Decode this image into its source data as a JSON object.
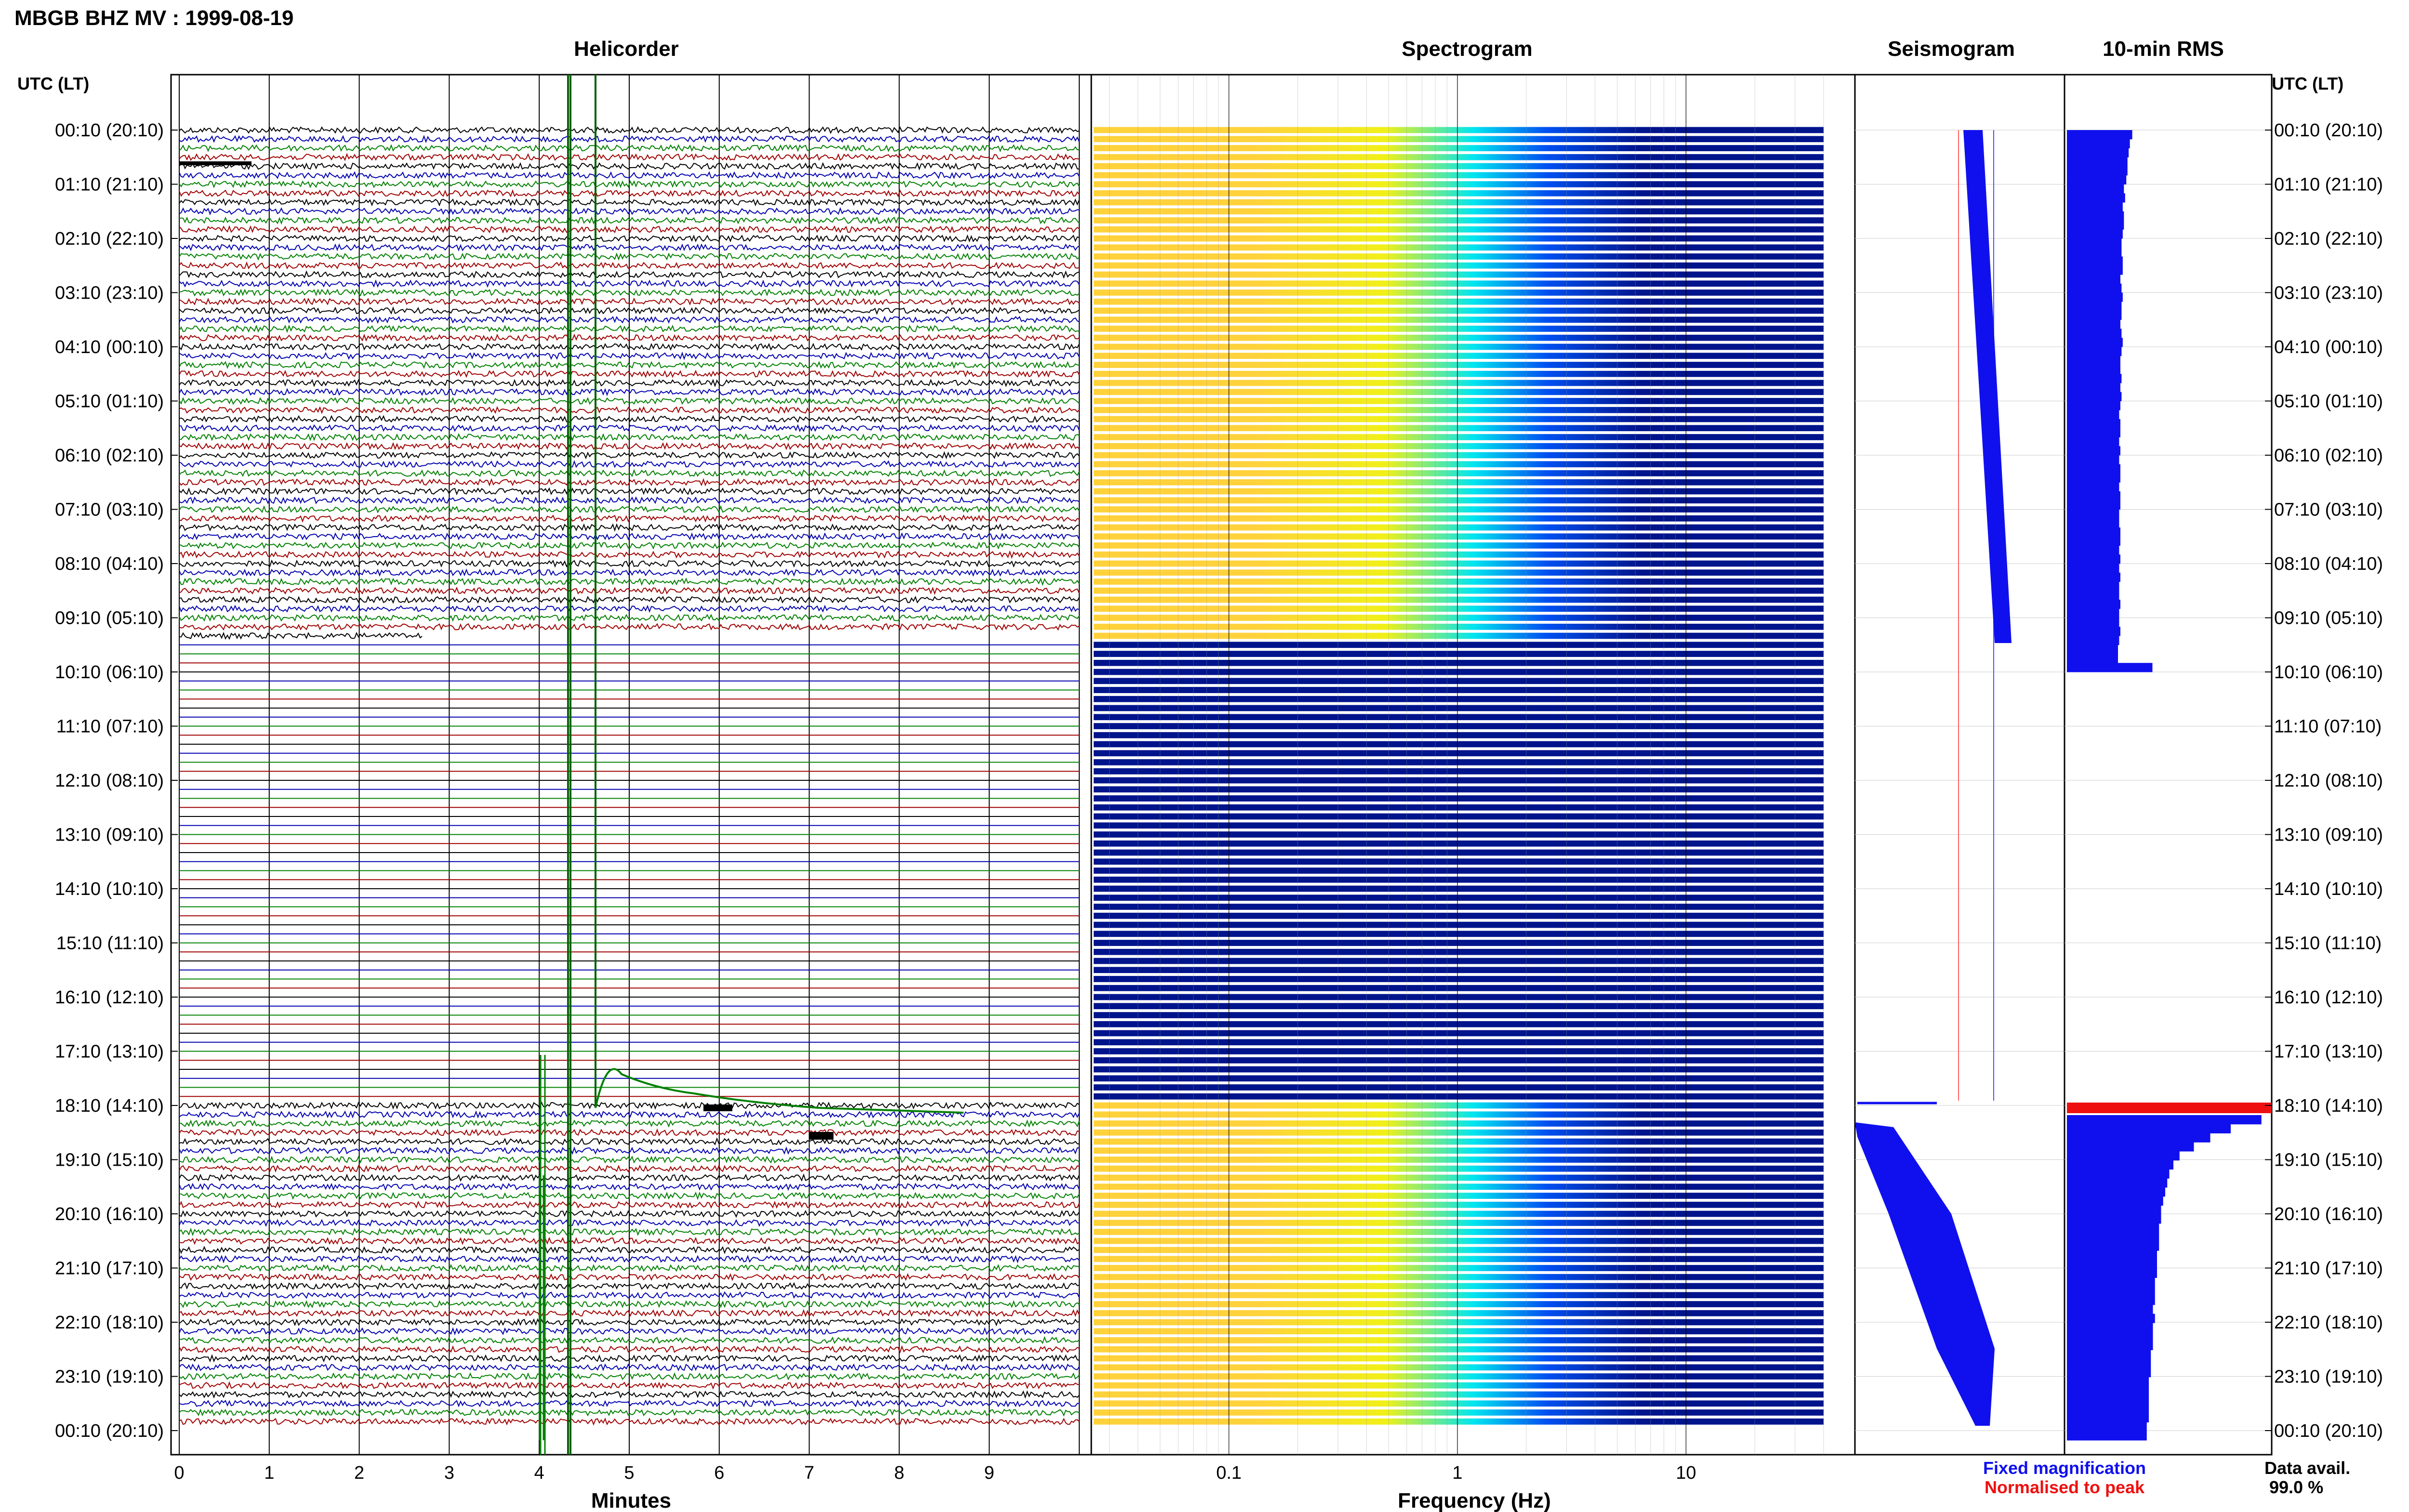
{
  "header": {
    "title": "MBGB BHZ MV : 1999-08-19"
  },
  "panels": {
    "helicorder": "Helicorder",
    "spectrogram": "Spectrogram",
    "seismogram": "Seismogram",
    "rms": "10-min RMS"
  },
  "axis": {
    "utc_label_left": "UTC (LT)",
    "utc_label_right": "UTC (LT)",
    "minutes_label": "Minutes",
    "frequency_label": "Frequency (Hz)"
  },
  "legend": {
    "fixed": "Fixed magnification",
    "normalised": "Normalised to peak",
    "fixed_color": "#1010ee",
    "normalised_color": "#ee1010"
  },
  "data_avail": {
    "label": "Data avail.",
    "value": "99.0 %"
  },
  "chart_data": {
    "type": "heatmap",
    "time_labels": [
      "00:10 (20:10)",
      "01:10 (21:10)",
      "02:10 (22:10)",
      "03:10 (23:10)",
      "04:10 (00:10)",
      "05:10 (01:10)",
      "06:10 (02:10)",
      "07:10 (03:10)",
      "08:10 (04:10)",
      "09:10 (05:10)",
      "10:10 (06:10)",
      "11:10 (07:10)",
      "12:10 (08:10)",
      "13:10 (09:10)",
      "14:10 (10:10)",
      "15:10 (11:10)",
      "16:10 (12:10)",
      "17:10 (13:10)",
      "18:10 (14:10)",
      "19:10 (15:10)",
      "20:10 (16:10)",
      "21:10 (17:10)",
      "22:10 (18:10)",
      "23:10 (19:10)",
      "00:10 (20:10)"
    ],
    "minute_ticks": [
      "0",
      "1",
      "2",
      "3",
      "4",
      "5",
      "6",
      "7",
      "8",
      "9"
    ],
    "frequency_ticks": [
      "0.1",
      "1",
      "10"
    ],
    "frequency_range_hz": [
      0.025,
      40
    ],
    "minutes_range": [
      0,
      10
    ],
    "trace_colors": [
      "#000000",
      "#0000b0",
      "#008000",
      "#a00000"
    ],
    "spectrogram_colors": [
      "#ffd23c",
      "#f0f018",
      "#00e6f0",
      "#0050f0",
      "#00148c"
    ],
    "rows_per_hour": 6,
    "data_gap_hours": [
      9.5,
      18.0
    ],
    "rms_values": [
      0.55,
      0.53,
      0.52,
      0.51,
      0.51,
      0.5,
      0.48,
      0.49,
      0.47,
      0.48,
      0.48,
      0.47,
      0.46,
      0.46,
      0.47,
      0.47,
      0.45,
      0.46,
      0.47,
      0.46,
      0.46,
      0.45,
      0.46,
      0.47,
      0.46,
      0.45,
      0.45,
      0.46,
      0.45,
      0.46,
      0.45,
      0.44,
      0.45,
      0.45,
      0.44,
      0.45,
      0.44,
      0.45,
      0.45,
      0.44,
      0.45,
      0.45,
      0.44,
      0.44,
      0.45,
      0.45,
      0.44,
      0.45,
      0.44,
      0.45,
      0.44,
      0.44,
      0.45,
      0.44,
      0.44,
      0.45,
      0.44,
      0.43,
      0.43,
      0.72
    ],
    "rms_values_after_gap": [
      0.95,
      0.8,
      0.7,
      0.62,
      0.55,
      0.52,
      0.5,
      0.49,
      0.48,
      0.47,
      0.46,
      0.46,
      0.45,
      0.45,
      0.45,
      0.44,
      0.44,
      0.44,
      0.43,
      0.43,
      0.43,
      0.42,
      0.43,
      0.42,
      0.42,
      0.42,
      0.41,
      0.41,
      0.41,
      0.4,
      0.4,
      0.4,
      0.4,
      0.4,
      0.39,
      0.39
    ]
  }
}
